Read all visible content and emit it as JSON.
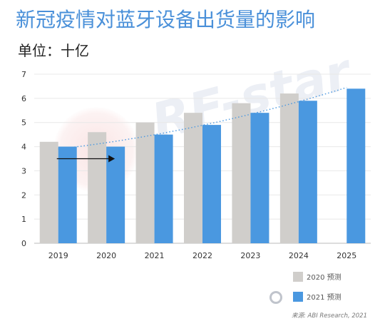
{
  "title": "新冠疫情对蓝牙设备出货量的影响",
  "subtitle": "单位：十亿",
  "source": "来源: ABI Research, 2021",
  "watermark": "RF-star",
  "colors": {
    "forecast_2020": "#d0cecb",
    "forecast_2021": "#4a98e0",
    "trend": "#4a98e0",
    "title": "#4a90d9"
  },
  "chart_data": {
    "type": "bar",
    "categories": [
      "2019",
      "2020",
      "2021",
      "2022",
      "2023",
      "2024",
      "2025"
    ],
    "series": [
      {
        "name": "2020 预测",
        "values": [
          4.2,
          4.6,
          5.0,
          5.4,
          5.8,
          6.2,
          null
        ]
      },
      {
        "name": "2021 预测",
        "values": [
          4.0,
          4.0,
          4.5,
          4.9,
          5.4,
          5.9,
          6.4
        ]
      }
    ],
    "trendline": {
      "series": "2021 预测",
      "style": "dotted"
    },
    "annotation": {
      "type": "arrow",
      "from_category": "2019",
      "to_category": "2020",
      "y": 3.5
    },
    "ylim": [
      0,
      7
    ],
    "yticks": [
      0,
      1,
      2,
      3,
      4,
      5,
      6,
      7
    ],
    "grid": true,
    "legend_position": "bottom-right"
  }
}
